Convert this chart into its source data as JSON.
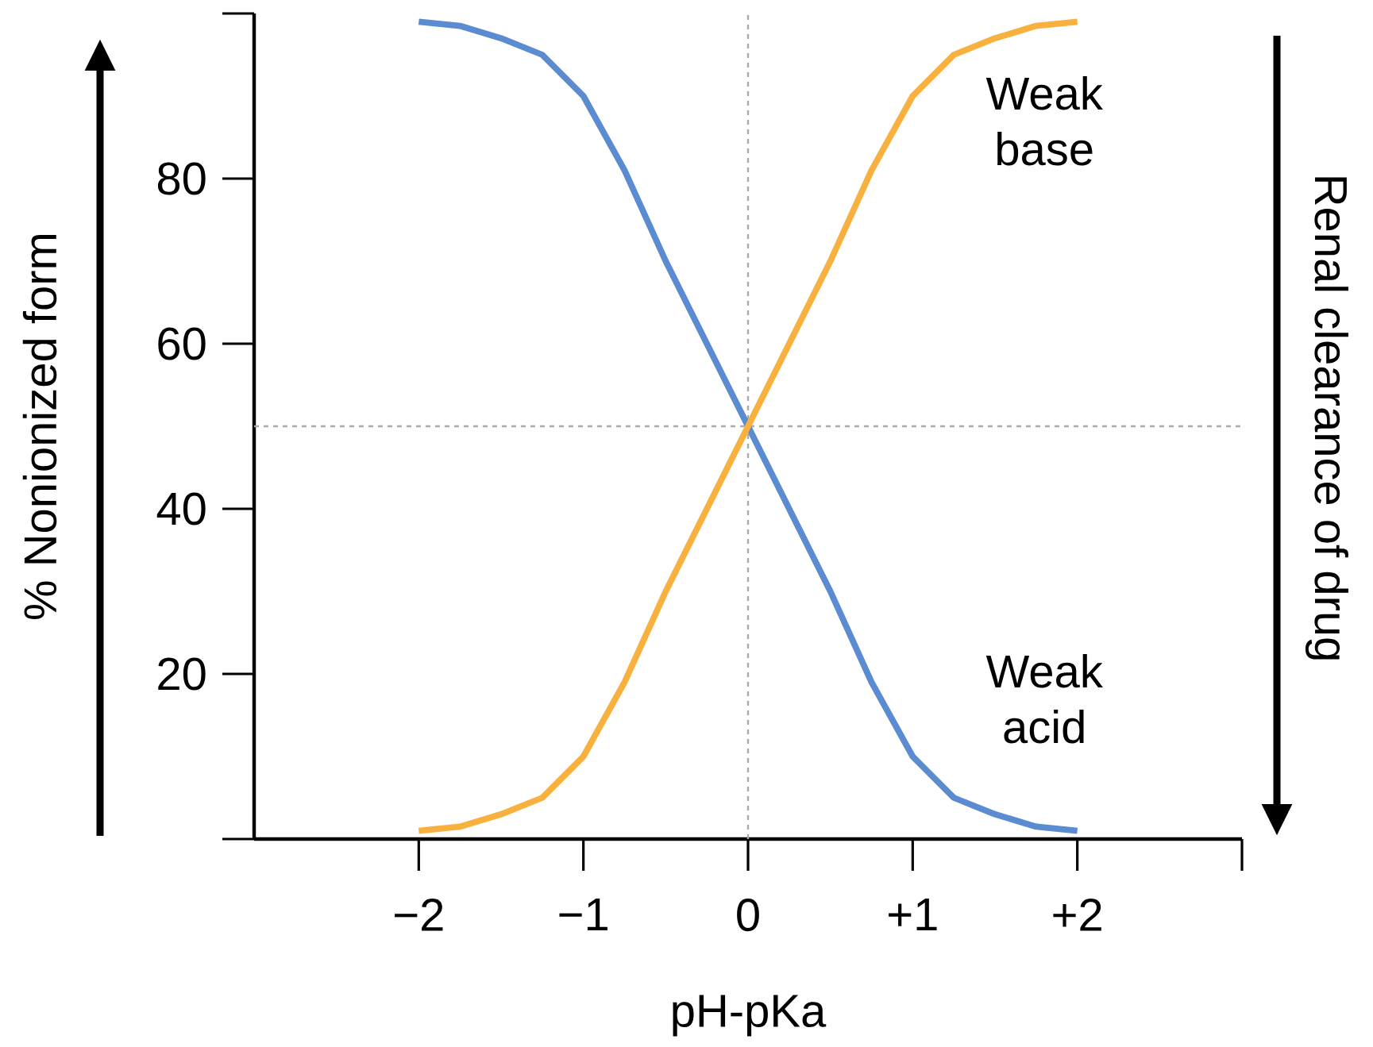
{
  "chart_data": {
    "type": "line",
    "xlabel": "pH-pKa",
    "ylabel": "% Nonionized form",
    "y2label": "Renal clearance of drug",
    "xlim": [
      -3,
      3
    ],
    "ylim": [
      0,
      100
    ],
    "xticks": [
      {
        "value": -2,
        "label": "−2"
      },
      {
        "value": -1,
        "label": "−1"
      },
      0,
      {
        "value": 1,
        "label": "+1"
      },
      {
        "value": 2,
        "label": "+2"
      }
    ],
    "yticks": [
      {
        "value": 0,
        "label": null
      },
      20,
      40,
      60,
      80
    ],
    "x": [
      -2,
      -1.75,
      -1.5,
      -1.25,
      -1,
      -0.75,
      -0.5,
      -0.25,
      0,
      0.25,
      0.5,
      0.75,
      1,
      1.25,
      1.5,
      1.75,
      2
    ],
    "series": [
      {
        "name": "Weak acid",
        "color": "#5b8bd0",
        "values": [
          99,
          98.5,
          97,
          95,
          90,
          81,
          70,
          60,
          50,
          40,
          30,
          19,
          10,
          5,
          3,
          1.5,
          1
        ]
      },
      {
        "name": "Weak base",
        "color": "#f8b13e",
        "values": [
          1,
          1.5,
          3,
          5,
          10,
          19,
          30,
          40,
          50,
          60,
          70,
          81,
          90,
          95,
          97,
          98.5,
          99
        ]
      }
    ],
    "ref_lines": [
      {
        "axis": "x",
        "value": 0,
        "color": "#aaaaaa",
        "line_style": "dashed"
      },
      {
        "axis": "y",
        "value": 50,
        "color": "#aaaaaa",
        "line_style": "dashed"
      }
    ]
  }
}
